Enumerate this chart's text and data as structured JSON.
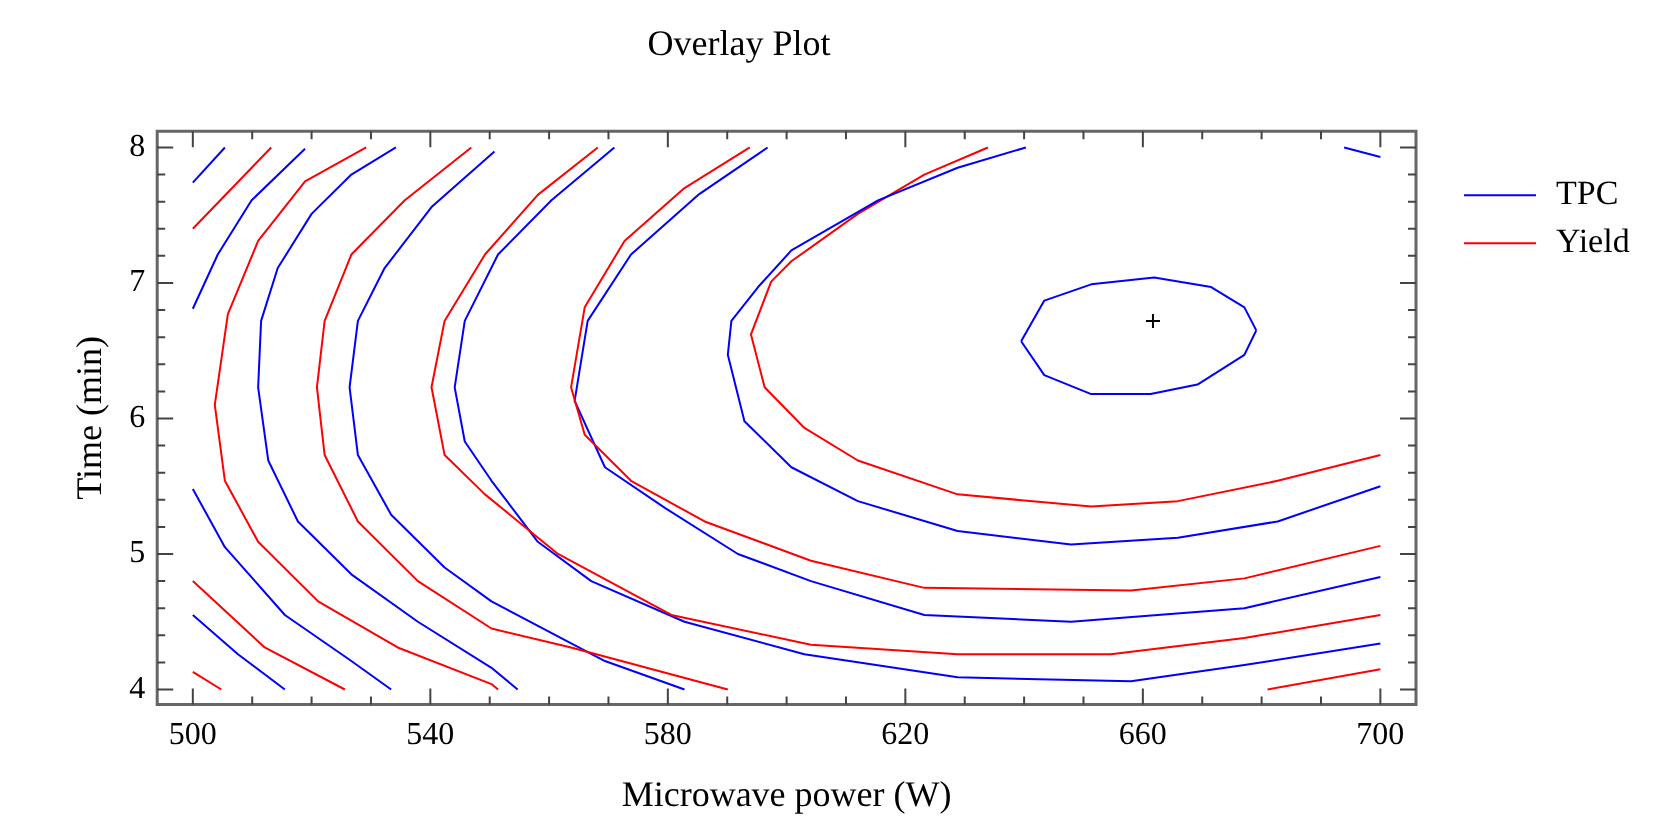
{
  "chart_data": {
    "type": "line",
    "title": "Overlay Plot",
    "xlabel": "Microwave power (W)",
    "ylabel": "Time (min)",
    "xlim": [
      494,
      706
    ],
    "ylim": [
      3.89,
      8.12
    ],
    "xticks": [
      500,
      {
        "value": 510,
        "label": null
      },
      {
        "value": 520,
        "label": null
      },
      {
        "value": 530,
        "label": null
      },
      540,
      {
        "value": 550,
        "label": null
      },
      {
        "value": 560,
        "label": null
      },
      {
        "value": 570,
        "label": null
      },
      580,
      {
        "value": 590,
        "label": null
      },
      {
        "value": 600,
        "label": null
      },
      {
        "value": 610,
        "label": null
      },
      620,
      {
        "value": 630,
        "label": null
      },
      {
        "value": 640,
        "label": null
      },
      {
        "value": 650,
        "label": null
      },
      660,
      {
        "value": 670,
        "label": null
      },
      {
        "value": 680,
        "label": null
      },
      {
        "value": 690,
        "label": null
      },
      700
    ],
    "yticks": [
      4,
      {
        "value": 4.2,
        "label": null
      },
      {
        "value": 4.4,
        "label": null
      },
      {
        "value": 4.6,
        "label": null
      },
      {
        "value": 4.8,
        "label": null
      },
      5,
      {
        "value": 5.2,
        "label": null
      },
      {
        "value": 5.4,
        "label": null
      },
      {
        "value": 5.6,
        "label": null
      },
      {
        "value": 5.8,
        "label": null
      },
      6,
      {
        "value": 6.2,
        "label": null
      },
      {
        "value": 6.4,
        "label": null
      },
      {
        "value": 6.6,
        "label": null
      },
      {
        "value": 6.8,
        "label": null
      },
      7,
      {
        "value": 7.2,
        "label": null
      },
      {
        "value": 7.4,
        "label": null
      },
      {
        "value": 7.6,
        "label": null
      },
      {
        "value": 7.8,
        "label": null
      },
      8
    ],
    "grid": false,
    "legend": "right",
    "marker": "none",
    "line_style": "solid",
    "series": [
      {
        "name": "TPC",
        "color": "#0000ff",
        "x": [
          640.3,
          628.8,
          615.4,
          600.8,
          595.2,
          590.7,
          590.1,
          592.9,
          600.8,
          612.0,
          628.8,
          647.9,
          665.9,
          682.7,
          700
        ],
        "values": [
          8,
          7.85,
          7.61,
          7.24,
          6.97,
          6.72,
          6.47,
          5.98,
          5.64,
          5.39,
          5.17,
          5.07,
          5.12,
          5.24,
          5.5
        ]
      },
      {
        "name": "Yield",
        "color": "#ff0000",
        "x": [
          633.9,
          623.2,
          612.0,
          600.8,
          597.4,
          594.0,
          596.3,
          603.0,
          612.0,
          628.8,
          651.3,
          665.9,
          682.7,
          700
        ],
        "values": [
          8,
          7.8,
          7.51,
          7.16,
          7.01,
          6.62,
          6.23,
          5.93,
          5.69,
          5.44,
          5.35,
          5.39,
          5.54,
          5.73
        ]
      },
      {
        "color": "#0000ff",
        "x": [
          500,
          505.4
        ],
        "values": [
          7.74,
          8
        ]
      },
      {
        "color": "#ff0000",
        "x": [
          500,
          513.2
        ],
        "values": [
          7.4,
          8
        ]
      },
      {
        "color": "#0000ff",
        "x": [
          500,
          504.2,
          509.9,
          518.9
        ],
        "values": [
          6.81,
          7.21,
          7.61,
          7.99
        ]
      },
      {
        "color": "#ff0000",
        "x": [
          500,
          504.8
        ],
        "values": [
          4.13,
          4.0
        ]
      },
      {
        "color": "#0000ff",
        "x": [
          500,
          507.6,
          515.5
        ],
        "values": [
          4.55,
          4.26,
          4.0
        ]
      },
      {
        "color": "#ff0000",
        "x": [
          500,
          512.1,
          525.6
        ],
        "values": [
          4.8,
          4.31,
          4.0
        ]
      },
      {
        "color": "#0000ff",
        "x": [
          500,
          505.4,
          515.5,
          526.7,
          533.4
        ],
        "values": [
          5.48,
          5.05,
          4.55,
          4.21,
          4.0
        ]
      },
      {
        "color": "#ff0000",
        "x": [
          529.2,
          518.9,
          511.0,
          505.9,
          503.7,
          505.4,
          511.0,
          521.1,
          534.5,
          550.3,
          551.4
        ],
        "values": [
          8,
          7.75,
          7.31,
          6.77,
          6.1,
          5.54,
          5.09,
          4.65,
          4.31,
          4.04,
          4.0
        ]
      },
      {
        "color": "#0000ff",
        "x": [
          534.2,
          526.7,
          520.0,
          514.3,
          511.5,
          511.0,
          512.7,
          517.7,
          526.7,
          537.9,
          550.3,
          554.7
        ],
        "values": [
          8,
          7.8,
          7.51,
          7.11,
          6.72,
          6.23,
          5.69,
          5.24,
          4.85,
          4.5,
          4.16,
          4.0
        ]
      },
      {
        "color": "#ff0000",
        "x": [
          546.9,
          535.7,
          526.7,
          522.2,
          520.9,
          522.2,
          527.8,
          537.9,
          550.3,
          563.7,
          590.1
        ],
        "values": [
          8,
          7.61,
          7.21,
          6.72,
          6.23,
          5.73,
          5.24,
          4.8,
          4.45,
          4.31,
          4.0
        ]
      },
      {
        "color": "#0000ff",
        "x": [
          550.8,
          540.2,
          532.3,
          527.8,
          526.4,
          527.8,
          533.4,
          542.4,
          550.3,
          569.4,
          582.8
        ],
        "values": [
          7.97,
          7.56,
          7.11,
          6.72,
          6.23,
          5.73,
          5.29,
          4.9,
          4.65,
          4.21,
          4.0
        ]
      },
      {
        "color": "#ff0000",
        "x": [
          568.2,
          558.1,
          549.2,
          542.4,
          540.2,
          542.4,
          549.2,
          561.5,
          580.6,
          604.1,
          628.8,
          654.6,
          677.1,
          700
        ],
        "values": [
          8,
          7.65,
          7.21,
          6.72,
          6.23,
          5.73,
          5.44,
          5.0,
          4.55,
          4.33,
          4.26,
          4.26,
          4.38,
          4.55
        ]
      },
      {
        "color": "#0000ff",
        "x": [
          571.0,
          560.4,
          551.4,
          545.8,
          544.1,
          545.8,
          550.3,
          558.1,
          567.1,
          582.8,
          603.0,
          628.8,
          658.0,
          677.1,
          700
        ],
        "values": [
          8,
          7.61,
          7.21,
          6.72,
          6.23,
          5.83,
          5.54,
          5.09,
          4.8,
          4.5,
          4.26,
          4.09,
          4.06,
          4.18,
          4.34
        ]
      },
      {
        "color": "#ff0000",
        "x": [
          593.8,
          582.8,
          572.7,
          566.0,
          563.7,
          566.0,
          573.8,
          586.2,
          604.1,
          623.2,
          658.0,
          677.1,
          700
        ],
        "values": [
          8,
          7.7,
          7.31,
          6.82,
          6.23,
          5.88,
          5.54,
          5.24,
          4.95,
          4.75,
          4.73,
          4.82,
          5.06
        ]
      },
      {
        "color": "#0000ff",
        "x": [
          596.8,
          585.1,
          573.8,
          566.5,
          564.3,
          569.4,
          579.5,
          591.8,
          604.1,
          623.2,
          647.9,
          677.1,
          700
        ],
        "values": [
          8,
          7.65,
          7.21,
          6.72,
          6.13,
          5.64,
          5.34,
          5.0,
          4.8,
          4.55,
          4.5,
          4.6,
          4.83
        ]
      },
      {
        "color": "#0000ff",
        "x": [
          639.5,
          643.4,
          651.3,
          661.9,
          671.5,
          677.1,
          679.1
        ],
        "values": [
          6.57,
          6.87,
          6.99,
          7.04,
          6.97,
          6.82,
          6.65
        ]
      },
      {
        "color": "#0000ff",
        "x": [
          639.5,
          643.4,
          651.3,
          661.3,
          669.2,
          677.1,
          679.1
        ],
        "values": [
          6.57,
          6.32,
          6.18,
          6.18,
          6.25,
          6.47,
          6.65
        ]
      },
      {
        "color": "#ff0000",
        "x": [
          681.0,
          700
        ],
        "values": [
          4.0,
          4.15
        ]
      },
      {
        "color": "#0000ff",
        "x": [
          693.9,
          700
        ],
        "values": [
          8,
          7.93
        ]
      },
      {
        "type": "scatter",
        "marker": "cross",
        "color": "#000000",
        "x": [
          661.7
        ],
        "values": [
          6.72
        ]
      }
    ]
  }
}
